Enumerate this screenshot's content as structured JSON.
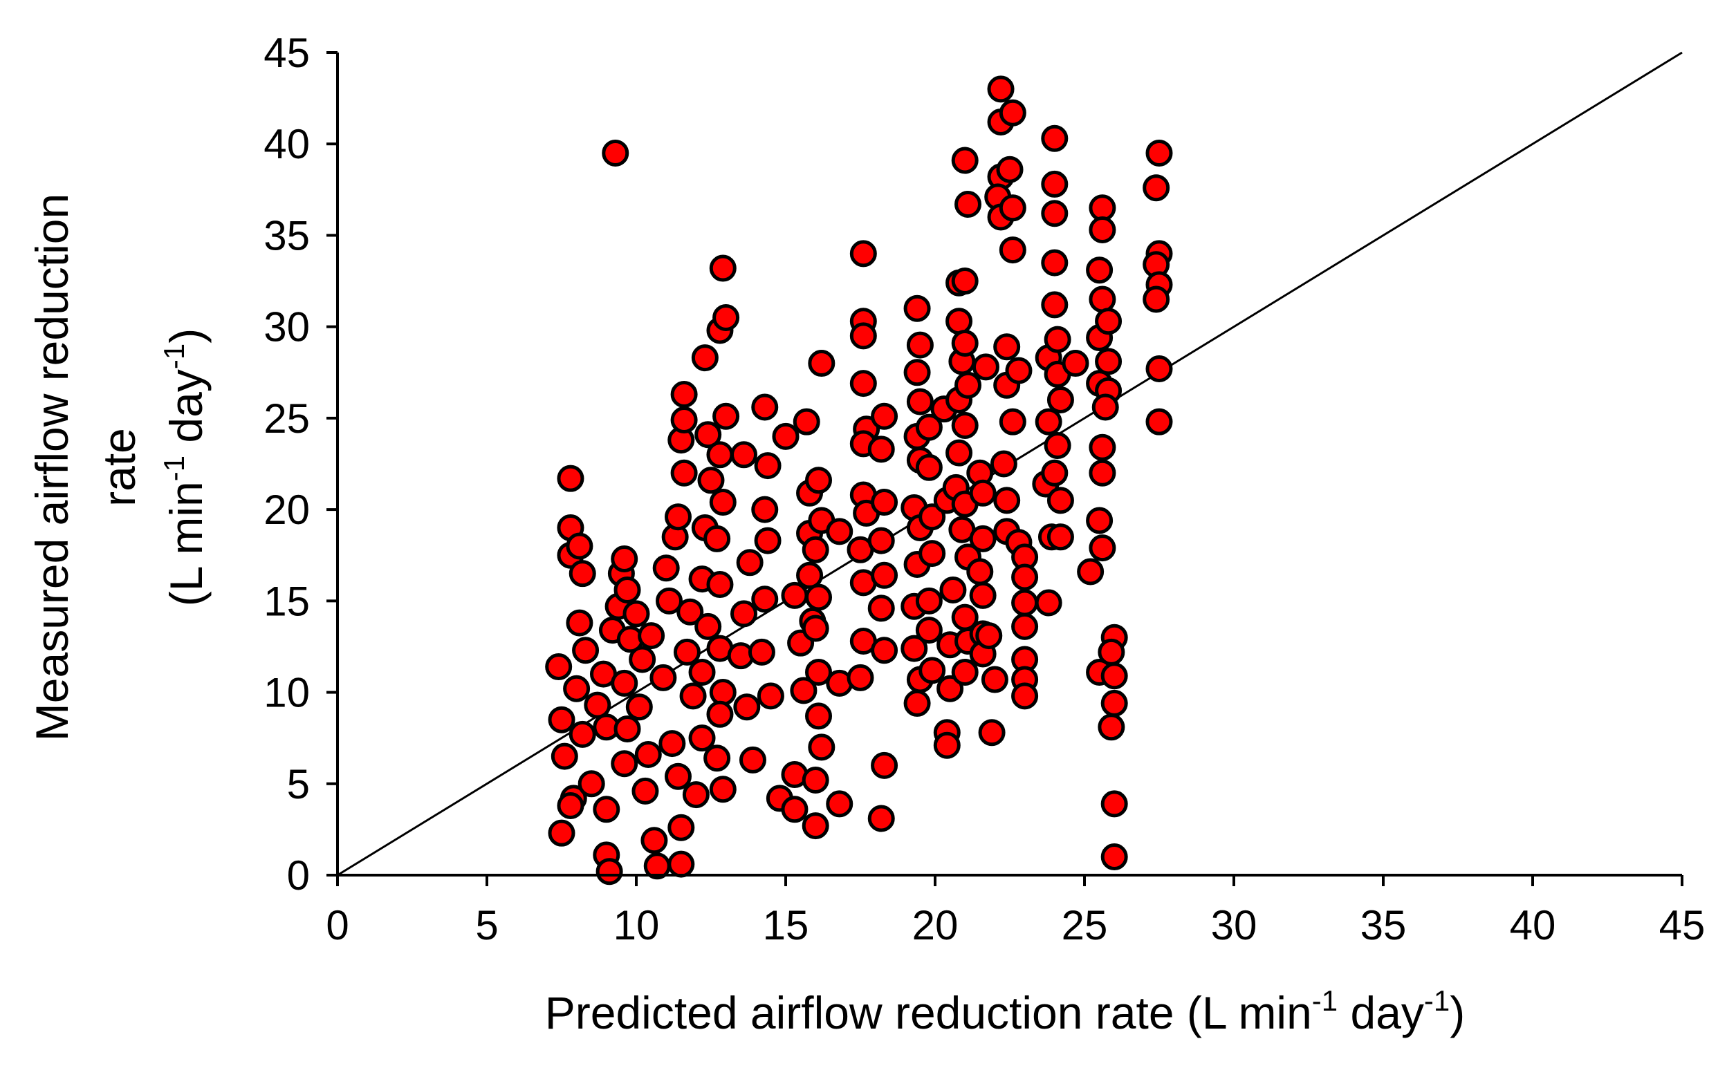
{
  "chart_data": {
    "type": "scatter",
    "title": "",
    "xlabel": "Predicted airflow reduction rate (L min-1 day-1)",
    "xlabel_parts": {
      "main": "Predicted airflow reduction rate (L min",
      "sup1": "-1",
      "mid": " day",
      "sup2": "-1",
      "end": ")"
    },
    "ylabel": "Measured airflow reduction rate (L min-1 day-1)",
    "ylabel_parts": {
      "line1": "Measured airflow reduction",
      "line2": "rate",
      "line3_main": "(L min",
      "line3_sup1": "-1",
      "line3_mid": " day",
      "line3_sup2": "-1",
      "line3_end": ")"
    },
    "xlim": [
      0,
      45
    ],
    "ylim": [
      0,
      45
    ],
    "xticks": [
      "0",
      "5",
      "10",
      "15",
      "20",
      "25",
      "30",
      "35",
      "40",
      "45"
    ],
    "yticks": [
      "0",
      "5",
      "10",
      "15",
      "20",
      "25",
      "30",
      "35",
      "40",
      "45"
    ],
    "grid": false,
    "reference_line": {
      "label": "1:1 line",
      "from": [
        0,
        0
      ],
      "to": [
        45,
        45
      ]
    },
    "marker": {
      "fill": "#ff0000",
      "stroke": "#000000"
    },
    "series": [
      {
        "name": "observations",
        "points": [
          [
            9.3,
            39.5
          ],
          [
            7.8,
            21.7
          ],
          [
            7.8,
            19.0
          ],
          [
            7.8,
            17.5
          ],
          [
            8.1,
            18.0
          ],
          [
            8.2,
            16.5
          ],
          [
            8.1,
            13.8
          ],
          [
            7.4,
            11.4
          ],
          [
            7.5,
            8.5
          ],
          [
            7.6,
            6.5
          ],
          [
            7.5,
            2.3
          ],
          [
            7.9,
            4.2
          ],
          [
            7.8,
            3.8
          ],
          [
            8.0,
            10.2
          ],
          [
            8.2,
            7.7
          ],
          [
            8.5,
            5.0
          ],
          [
            8.3,
            12.3
          ],
          [
            8.7,
            9.3
          ],
          [
            9.0,
            1.1
          ],
          [
            9.1,
            0.2
          ],
          [
            9.0,
            3.6
          ],
          [
            9.0,
            8.1
          ],
          [
            8.9,
            11.0
          ],
          [
            9.4,
            14.7
          ],
          [
            9.5,
            16.5
          ],
          [
            9.2,
            13.4
          ],
          [
            9.6,
            17.3
          ],
          [
            9.7,
            15.6
          ],
          [
            9.8,
            12.9
          ],
          [
            9.6,
            10.5
          ],
          [
            9.7,
            8.0
          ],
          [
            9.6,
            6.1
          ],
          [
            10.0,
            14.3
          ],
          [
            10.2,
            11.8
          ],
          [
            10.1,
            9.2
          ],
          [
            10.4,
            6.6
          ],
          [
            10.3,
            4.6
          ],
          [
            10.6,
            1.9
          ],
          [
            10.7,
            0.5
          ],
          [
            10.5,
            13.1
          ],
          [
            11.0,
            16.8
          ],
          [
            11.1,
            15.0
          ],
          [
            10.9,
            10.8
          ],
          [
            11.2,
            7.2
          ],
          [
            11.4,
            5.4
          ],
          [
            11.5,
            2.6
          ],
          [
            11.5,
            0.6
          ],
          [
            11.3,
            18.5
          ],
          [
            11.4,
            19.6
          ],
          [
            11.6,
            22.0
          ],
          [
            11.5,
            23.8
          ],
          [
            11.6,
            24.9
          ],
          [
            11.6,
            26.3
          ],
          [
            11.8,
            14.4
          ],
          [
            11.7,
            12.2
          ],
          [
            11.9,
            9.8
          ],
          [
            12.3,
            28.3
          ],
          [
            12.4,
            24.1
          ],
          [
            12.5,
            21.6
          ],
          [
            12.3,
            19.0
          ],
          [
            12.2,
            16.2
          ],
          [
            12.4,
            13.6
          ],
          [
            12.2,
            11.1
          ],
          [
            12.2,
            7.5
          ],
          [
            12.0,
            4.4
          ],
          [
            12.8,
            29.8
          ],
          [
            12.9,
            33.2
          ],
          [
            13.0,
            30.5
          ],
          [
            13.0,
            25.1
          ],
          [
            12.8,
            23.0
          ],
          [
            12.9,
            20.4
          ],
          [
            12.7,
            18.4
          ],
          [
            12.8,
            15.9
          ],
          [
            12.8,
            12.4
          ],
          [
            12.9,
            10.0
          ],
          [
            12.8,
            8.8
          ],
          [
            12.7,
            6.4
          ],
          [
            12.9,
            4.7
          ],
          [
            13.6,
            23.0
          ],
          [
            13.8,
            17.1
          ],
          [
            13.6,
            14.3
          ],
          [
            13.5,
            12.0
          ],
          [
            13.7,
            9.2
          ],
          [
            13.9,
            6.3
          ],
          [
            14.3,
            25.6
          ],
          [
            14.4,
            22.4
          ],
          [
            14.3,
            20.0
          ],
          [
            14.4,
            18.3
          ],
          [
            14.3,
            15.1
          ],
          [
            14.2,
            12.2
          ],
          [
            14.5,
            9.8
          ],
          [
            14.8,
            4.2
          ],
          [
            15.0,
            24.0
          ],
          [
            15.3,
            3.6
          ],
          [
            15.3,
            5.5
          ],
          [
            15.3,
            15.3
          ],
          [
            15.5,
            12.7
          ],
          [
            15.6,
            10.1
          ],
          [
            15.7,
            24.8
          ],
          [
            15.8,
            20.9
          ],
          [
            15.8,
            18.7
          ],
          [
            15.8,
            16.4
          ],
          [
            15.9,
            13.9
          ],
          [
            16.2,
            28.0
          ],
          [
            16.1,
            21.6
          ],
          [
            16.2,
            19.4
          ],
          [
            16.0,
            17.8
          ],
          [
            16.1,
            15.2
          ],
          [
            16.0,
            13.5
          ],
          [
            16.1,
            11.1
          ],
          [
            16.1,
            8.7
          ],
          [
            16.2,
            7.0
          ],
          [
            16.0,
            5.2
          ],
          [
            16.0,
            2.7
          ],
          [
            16.8,
            18.8
          ],
          [
            16.8,
            10.5
          ],
          [
            16.8,
            3.9
          ],
          [
            17.6,
            34.0
          ],
          [
            17.6,
            30.3
          ],
          [
            17.6,
            29.5
          ],
          [
            17.6,
            26.9
          ],
          [
            17.7,
            24.4
          ],
          [
            17.6,
            23.6
          ],
          [
            17.6,
            20.8
          ],
          [
            17.7,
            19.8
          ],
          [
            17.5,
            17.8
          ],
          [
            17.6,
            16.0
          ],
          [
            17.6,
            12.8
          ],
          [
            17.5,
            10.8
          ],
          [
            18.3,
            25.1
          ],
          [
            18.2,
            23.3
          ],
          [
            18.3,
            20.4
          ],
          [
            18.2,
            18.3
          ],
          [
            18.3,
            16.4
          ],
          [
            18.2,
            14.6
          ],
          [
            18.3,
            12.3
          ],
          [
            18.3,
            6.0
          ],
          [
            18.2,
            3.1
          ],
          [
            19.4,
            31.0
          ],
          [
            19.5,
            29.0
          ],
          [
            19.4,
            27.5
          ],
          [
            19.5,
            25.9
          ],
          [
            19.4,
            24.0
          ],
          [
            19.5,
            22.7
          ],
          [
            19.3,
            20.1
          ],
          [
            19.5,
            19.0
          ],
          [
            19.4,
            17.0
          ],
          [
            19.3,
            14.7
          ],
          [
            19.3,
            12.4
          ],
          [
            19.5,
            10.7
          ],
          [
            19.4,
            9.4
          ],
          [
            19.8,
            24.5
          ],
          [
            19.8,
            22.3
          ],
          [
            19.9,
            19.6
          ],
          [
            19.9,
            17.6
          ],
          [
            19.8,
            15.0
          ],
          [
            19.8,
            13.4
          ],
          [
            19.9,
            11.2
          ],
          [
            20.3,
            25.5
          ],
          [
            20.4,
            20.5
          ],
          [
            20.4,
            7.8
          ],
          [
            20.4,
            7.1
          ],
          [
            20.6,
            15.6
          ],
          [
            20.5,
            12.6
          ],
          [
            20.5,
            10.2
          ],
          [
            20.8,
            32.4
          ],
          [
            20.8,
            30.3
          ],
          [
            20.9,
            28.1
          ],
          [
            20.8,
            26.0
          ],
          [
            20.8,
            23.1
          ],
          [
            20.7,
            21.2
          ],
          [
            20.9,
            18.9
          ],
          [
            21.0,
            39.1
          ],
          [
            21.1,
            36.7
          ],
          [
            21.0,
            32.5
          ],
          [
            21.0,
            29.1
          ],
          [
            21.1,
            26.8
          ],
          [
            21.0,
            24.6
          ],
          [
            21.0,
            20.3
          ],
          [
            21.1,
            17.4
          ],
          [
            21.0,
            14.1
          ],
          [
            21.1,
            12.8
          ],
          [
            21.0,
            11.1
          ],
          [
            21.5,
            22.0
          ],
          [
            21.6,
            20.9
          ],
          [
            21.6,
            18.4
          ],
          [
            21.5,
            16.6
          ],
          [
            21.6,
            15.3
          ],
          [
            21.6,
            13.2
          ],
          [
            21.6,
            12.1
          ],
          [
            21.7,
            27.8
          ],
          [
            21.8,
            13.1
          ],
          [
            22.0,
            10.7
          ],
          [
            21.9,
            7.8
          ],
          [
            22.2,
            43.0
          ],
          [
            22.2,
            41.2
          ],
          [
            22.2,
            38.2
          ],
          [
            22.1,
            37.1
          ],
          [
            22.2,
            36.0
          ],
          [
            22.6,
            41.7
          ],
          [
            22.5,
            38.6
          ],
          [
            22.6,
            36.5
          ],
          [
            22.6,
            34.2
          ],
          [
            22.4,
            28.9
          ],
          [
            22.4,
            26.8
          ],
          [
            22.6,
            24.8
          ],
          [
            22.3,
            22.5
          ],
          [
            22.4,
            20.5
          ],
          [
            22.4,
            18.8
          ],
          [
            22.8,
            27.6
          ],
          [
            22.8,
            18.2
          ],
          [
            23.0,
            17.4
          ],
          [
            23.0,
            16.3
          ],
          [
            23.0,
            14.9
          ],
          [
            23.0,
            13.6
          ],
          [
            23.0,
            11.8
          ],
          [
            23.0,
            10.7
          ],
          [
            23.0,
            9.8
          ],
          [
            23.8,
            28.3
          ],
          [
            23.8,
            24.8
          ],
          [
            23.7,
            21.4
          ],
          [
            23.9,
            18.5
          ],
          [
            23.8,
            14.9
          ],
          [
            24.0,
            40.3
          ],
          [
            24.0,
            37.8
          ],
          [
            24.0,
            36.2
          ],
          [
            24.0,
            33.5
          ],
          [
            24.0,
            31.2
          ],
          [
            24.1,
            29.3
          ],
          [
            24.1,
            27.4
          ],
          [
            24.2,
            26.0
          ],
          [
            24.1,
            23.5
          ],
          [
            24.0,
            22.0
          ],
          [
            24.2,
            20.5
          ],
          [
            24.2,
            18.5
          ],
          [
            24.7,
            28.0
          ],
          [
            25.2,
            16.6
          ],
          [
            25.6,
            36.5
          ],
          [
            25.6,
            35.3
          ],
          [
            25.5,
            33.1
          ],
          [
            25.6,
            31.5
          ],
          [
            25.5,
            29.4
          ],
          [
            25.5,
            26.9
          ],
          [
            25.6,
            23.4
          ],
          [
            25.6,
            22.0
          ],
          [
            25.5,
            19.4
          ],
          [
            25.6,
            17.9
          ],
          [
            25.5,
            11.1
          ],
          [
            25.8,
            30.3
          ],
          [
            25.8,
            28.1
          ],
          [
            25.8,
            26.5
          ],
          [
            25.7,
            25.6
          ],
          [
            26.0,
            13.0
          ],
          [
            25.9,
            12.2
          ],
          [
            26.0,
            10.9
          ],
          [
            26.0,
            9.4
          ],
          [
            25.9,
            8.1
          ],
          [
            26.0,
            3.9
          ],
          [
            26.0,
            1.0
          ],
          [
            27.5,
            39.5
          ],
          [
            27.4,
            37.6
          ],
          [
            27.5,
            34.0
          ],
          [
            27.4,
            33.4
          ],
          [
            27.5,
            32.3
          ],
          [
            27.4,
            31.5
          ],
          [
            27.5,
            27.7
          ],
          [
            27.5,
            24.8
          ]
        ]
      }
    ]
  }
}
